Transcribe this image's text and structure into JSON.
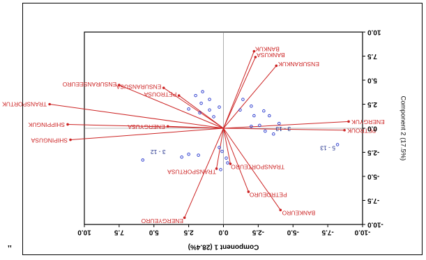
{
  "stray_mark": "\"",
  "chart_data": {
    "type": "biplot",
    "mirrored": true,
    "xlabel": "Component 1 (28.4%)",
    "ylabel": "Component 2 (17.5%)",
    "xlim": [
      -10.0,
      10.0
    ],
    "ylim": [
      -10.0,
      10.0
    ],
    "x_ticks": [
      "10.0",
      "7.5",
      "5.0",
      "2.5",
      "0.0",
      "-2.5",
      "-5.0",
      "-7.5",
      "-10.0"
    ],
    "y_ticks": [
      "10.0",
      "7.5",
      "5.0",
      "2.5",
      "0.0",
      "-2.5",
      "-5.0",
      "-7.5",
      "-10.0"
    ],
    "x_tick_values": [
      10.0,
      7.5,
      5.0,
      2.5,
      0.0,
      -2.5,
      -5.0,
      -7.5,
      -10.0
    ],
    "y_tick_values": [
      10.0,
      7.5,
      5.0,
      2.5,
      0.0,
      -2.5,
      -5.0,
      -7.5,
      -10.0
    ],
    "colors": {
      "vectors": "#cc2222",
      "points": "#2233cc",
      "axes": "#000000",
      "point_labels": "#1a2a88"
    },
    "vectors": [
      {
        "label": "BANKUK",
        "x": -2.2,
        "y": 8.0
      },
      {
        "label": "BANKUSA",
        "x": -2.3,
        "y": 7.4
      },
      {
        "label": "ENSURANKUK",
        "x": -3.8,
        "y": 6.5
      },
      {
        "label": "ENSURANSEEURO",
        "x": 7.5,
        "y": 4.5
      },
      {
        "label": "ENSURANSUSA",
        "x": 4.3,
        "y": 4.2
      },
      {
        "label": "PETROUSA",
        "x": 3.2,
        "y": 3.4
      },
      {
        "label": "TRANSPORTUK",
        "x": 12.5,
        "y": 2.5
      },
      {
        "label": "SHIPPINGUK",
        "x": 11.2,
        "y": 0.4
      },
      {
        "label": "SHIPINGUSA",
        "x": 11.0,
        "y": -1.2
      },
      {
        "label": "ENERGYUSA",
        "x": 4.0,
        "y": 0.2
      },
      {
        "label": "ENERGYUK",
        "x": -9.0,
        "y": 0.7
      },
      {
        "label": "PETROUK",
        "x": -8.7,
        "y": -0.2
      },
      {
        "label": "TRANSPORTEURO",
        "x": -0.5,
        "y": -3.7
      },
      {
        "label": "TRANSPORTUSA",
        "x": 0.5,
        "y": -4.2
      },
      {
        "label": "PETROEURO",
        "x": -1.8,
        "y": -6.6
      },
      {
        "label": "BANKEURO",
        "x": -4.1,
        "y": -8.5
      },
      {
        "label": "ENERGYEURO",
        "x": 2.8,
        "y": -9.3
      }
    ],
    "points": [
      {
        "x": 1.5,
        "y": 3.8
      },
      {
        "x": 2.0,
        "y": 3.4
      },
      {
        "x": 1.0,
        "y": 3.0
      },
      {
        "x": 1.6,
        "y": 2.6
      },
      {
        "x": 2.5,
        "y": 2.0
      },
      {
        "x": 1.0,
        "y": 1.9
      },
      {
        "x": 0.7,
        "y": 1.2
      },
      {
        "x": 1.7,
        "y": 1.6
      },
      {
        "x": 0.3,
        "y": 2.2
      },
      {
        "x": -1.4,
        "y": 3.0
      },
      {
        "x": -2.0,
        "y": 2.3
      },
      {
        "x": -2.9,
        "y": 1.8
      },
      {
        "x": -2.2,
        "y": 1.3
      },
      {
        "x": -1.2,
        "y": 1.9
      },
      {
        "x": -3.3,
        "y": 1.3
      },
      {
        "x": -4.0,
        "y": 0.5
      },
      {
        "x": -3.0,
        "y": -0.3
      },
      {
        "x": -2.6,
        "y": 0.3
      },
      {
        "x": -3.6,
        "y": -0.6
      },
      {
        "x": -2.0,
        "y": 0.2
      },
      {
        "x": -8.2,
        "y": -1.7
      },
      {
        "x": 0.3,
        "y": -2.0
      },
      {
        "x": 0.1,
        "y": -2.4
      },
      {
        "x": -0.2,
        "y": -3.1
      },
      {
        "x": -0.3,
        "y": -3.6
      },
      {
        "x": 0.2,
        "y": -4.3
      },
      {
        "x": 1.8,
        "y": -2.8
      },
      {
        "x": 2.5,
        "y": -2.7
      },
      {
        "x": 3.0,
        "y": -3.0
      },
      {
        "x": 5.8,
        "y": -3.3
      }
    ],
    "point_labels": [
      {
        "label": "3 - 13",
        "x": -4.3,
        "y": 0.0
      },
      {
        "label": "5 - 13",
        "x": -7.5,
        "y": -2.0
      },
      {
        "label": "3 - 12",
        "x": 4.7,
        "y": -2.4
      }
    ]
  }
}
